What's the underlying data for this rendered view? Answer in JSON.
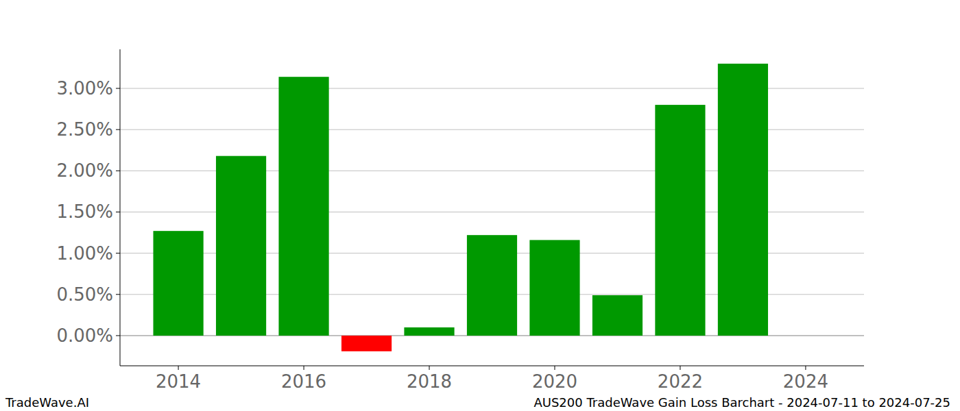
{
  "chart_data": {
    "type": "bar",
    "title": "AUS200 TradeWave Gain Loss Barchart - 2024-07-11 to 2024-07-25",
    "subtitle": "TradeWave.AI",
    "x": [
      2014,
      2015,
      2016,
      2017,
      2018,
      2019,
      2020,
      2021,
      2022,
      2023
    ],
    "values": [
      1.27,
      2.18,
      3.14,
      -0.19,
      0.1,
      1.22,
      1.16,
      0.49,
      2.8,
      3.3
    ],
    "colors": [
      "#009900",
      "#009900",
      "#009900",
      "#ff0000",
      "#009900",
      "#009900",
      "#009900",
      "#009900",
      "#009900",
      "#009900"
    ],
    "xlim": [
      2013.07,
      2024.93
    ],
    "xticks": [
      2014,
      2016,
      2018,
      2020,
      2022,
      2024
    ],
    "ylim": [
      -0.366,
      3.474
    ],
    "yticks": [
      {
        "value": 0,
        "label": "0.00%"
      },
      {
        "value": 0.5,
        "label": "0.50%"
      },
      {
        "value": 1,
        "label": "1.00%"
      },
      {
        "value": 1.5,
        "label": "1.50%"
      },
      {
        "value": 2,
        "label": "2.00%"
      },
      {
        "value": 2.5,
        "label": "2.50%"
      },
      {
        "value": 3,
        "label": "3.00%"
      }
    ],
    "grid": true
  }
}
